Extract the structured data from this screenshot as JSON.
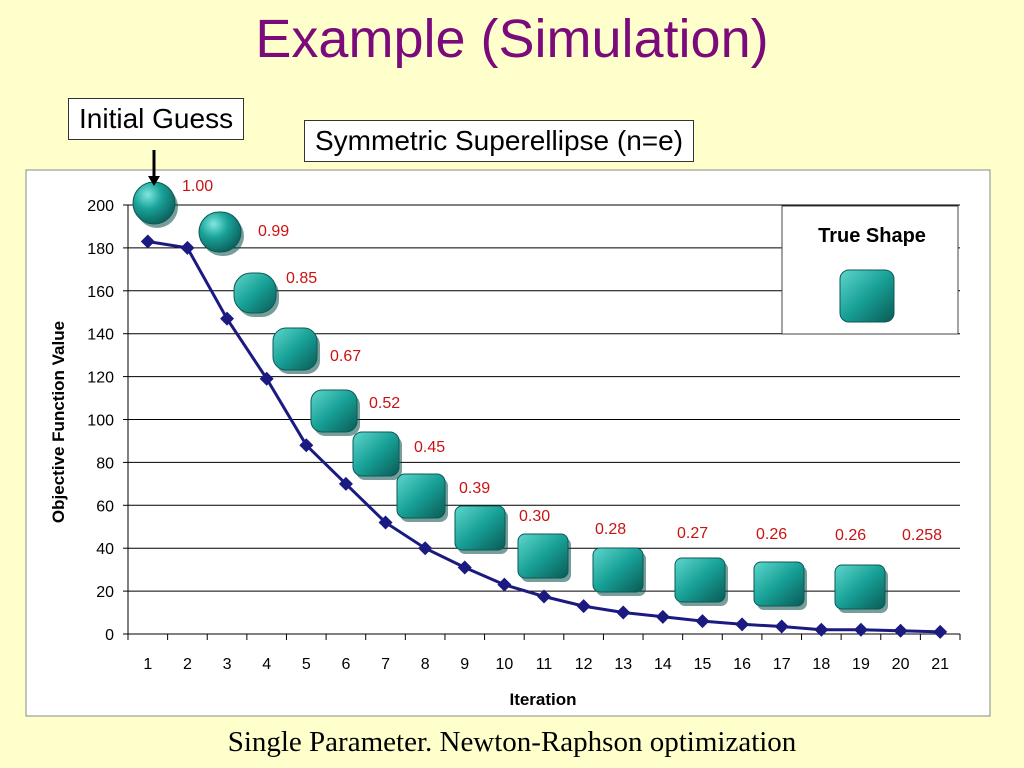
{
  "slide": {
    "title": "Example (Simulation)",
    "initial_guess_label": "Initial Guess",
    "superellipse_label": "Symmetric Superellipse (n=e)",
    "caption": "Single Parameter. Newton-Raphson optimization"
  },
  "chart_data": {
    "type": "line",
    "xlabel": "Iteration",
    "ylabel": "Objective Function Value",
    "ylim": [
      0,
      200
    ],
    "yticks": [
      0,
      20,
      40,
      60,
      80,
      100,
      120,
      140,
      160,
      180,
      200
    ],
    "x": [
      1,
      2,
      3,
      4,
      5,
      6,
      7,
      8,
      9,
      10,
      11,
      12,
      13,
      14,
      15,
      16,
      17,
      18,
      19,
      20,
      21
    ],
    "series": [
      {
        "values": [
          183,
          180,
          147,
          119,
          88,
          70,
          52,
          40,
          31,
          23,
          17.5,
          13,
          10,
          8,
          6,
          4.5,
          3.5,
          2,
          2,
          1.5,
          1
        ],
        "color": "#1a1a80"
      }
    ],
    "shape_labels": [
      "1.00",
      "0.99",
      "0.85",
      "0.67",
      "0.52",
      "0.45",
      "0.39",
      "0.30",
      "0.28",
      "0.27",
      "0.26",
      "0.26",
      "0.258"
    ],
    "shape_label_color": "#cc1111",
    "shape_color": "#1aa39a",
    "legend": {
      "title": "True Shape"
    },
    "grid": true,
    "background": "#ffffff"
  }
}
